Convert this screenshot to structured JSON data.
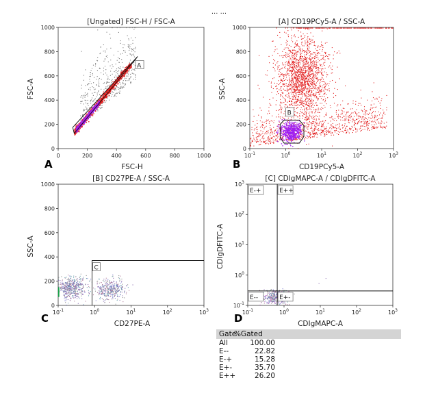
{
  "figure_caption_partial": "... ...",
  "chart_data": [
    {
      "panel_letter": "A",
      "type": "scatter",
      "title": "[Ungated] FSC-H / FSC-A",
      "xlabel": "FSC-H",
      "ylabel": "FSC-A",
      "xscale": "linear",
      "yscale": "linear",
      "xlim": [
        0,
        1000
      ],
      "ylim": [
        0,
        1000
      ],
      "xticks": [
        "0",
        "200",
        "400",
        "600",
        "800",
        "1000"
      ],
      "yticks": [
        "0",
        "200",
        "400",
        "600",
        "800",
        "1000"
      ],
      "populations": [
        {
          "name": "singlets-diagonal",
          "color": "#e21b1b",
          "cx": 330,
          "cy": 320,
          "note": "diagonal band y≈x"
        },
        {
          "name": "scattered-events",
          "color": "#777777",
          "cx": 380,
          "cy": 480
        },
        {
          "name": "dense-core",
          "color": "#a020f0",
          "cx": 220,
          "cy": 220
        }
      ],
      "gates": [
        {
          "label": "A",
          "shape": "parallelogram",
          "points": [
            [
              100,
              175
            ],
            [
              110,
              125
            ],
            [
              530,
              735
            ],
            [
              545,
              760
            ]
          ]
        }
      ]
    },
    {
      "panel_letter": "B",
      "type": "scatter",
      "title": "[A] CD19PCy5-A / SSC-A",
      "xlabel": "CD19PCy5-A",
      "ylabel": "SSC-A",
      "xscale": "log",
      "yscale": "linear",
      "xlim": [
        0.1,
        1000
      ],
      "ylim": [
        0,
        1000
      ],
      "xticks": [
        "10^-1",
        "10^0",
        "10^1",
        "10^2",
        "10^3"
      ],
      "yticks": [
        "0",
        "200",
        "400",
        "600",
        "800",
        "1000"
      ],
      "populations": [
        {
          "name": "high-ssc-cloud",
          "color": "#e21b1b",
          "cx": 2.8,
          "cy": 600
        },
        {
          "name": "low-ssc-events",
          "color": "#e21b1b",
          "cx": 1.5,
          "cy": 150
        },
        {
          "name": "gated-B",
          "color": "#a020f0",
          "cx": 1.5,
          "cy": 150
        }
      ],
      "gates": [
        {
          "label": "B",
          "shape": "polygon",
          "points": [
            [
              0.7,
              90
            ],
            [
              0.7,
              200
            ],
            [
              0.9,
              235
            ],
            [
              2.4,
              235
            ],
            [
              3.2,
              190
            ],
            [
              3.2,
              100
            ],
            [
              2.4,
              45
            ],
            [
              0.9,
              45
            ]
          ]
        }
      ]
    },
    {
      "panel_letter": "C",
      "type": "scatter",
      "title": "[B] CD27PE-A / SSC-A",
      "xlabel": "CD27PE-A",
      "ylabel": "SSC-A",
      "xscale": "log",
      "yscale": "linear",
      "xlim": [
        0.1,
        1000
      ],
      "ylim": [
        0,
        1000
      ],
      "xticks": [
        "10^-1",
        "10^0",
        "10^1",
        "10^2",
        "10^3"
      ],
      "yticks": [
        "0",
        "200",
        "400",
        "600",
        "800",
        "1000"
      ],
      "populations": [
        {
          "name": "cd27-neg",
          "color": "#8a6bb0",
          "cx": 0.28,
          "cy": 150
        },
        {
          "name": "cd27-pos",
          "color": "#8a6bb0",
          "cx": 3.0,
          "cy": 130
        }
      ],
      "gates": [
        {
          "label": "C",
          "shape": "rectangle",
          "x0": 0.85,
          "x1": 1000,
          "y0": 0,
          "y1": 370
        }
      ]
    },
    {
      "panel_letter": "D",
      "type": "scatter",
      "title": "[C] CDIgMAPC-A / CDIgDFITC-A",
      "xlabel": "CDIgMAPC-A",
      "ylabel": "CDIgDFITC-A",
      "xscale": "log",
      "yscale": "log",
      "xlim": [
        0.1,
        1000
      ],
      "ylim": [
        0.1,
        1000
      ],
      "xticks": [
        "10^-1",
        "10^0",
        "10^1",
        "10^2",
        "10^3"
      ],
      "yticks": [
        "10^-1",
        "10^0",
        "10^1",
        "10^2",
        "10^3"
      ],
      "populations": [
        {
          "name": "quadrant-events",
          "color": "#8a6bb0",
          "cx": 0.7,
          "cy": 0.22
        }
      ],
      "quadrant_split": {
        "x": 0.65,
        "y": 0.3
      },
      "quadrant_labels": [
        "E-+",
        "E++",
        "E--",
        "E+-"
      ]
    }
  ],
  "stats_table": {
    "headers": [
      "Gate",
      "%Gated"
    ],
    "rows": [
      {
        "gate": "All",
        "pct": "100.00"
      },
      {
        "gate": "E--",
        "pct": "22.82"
      },
      {
        "gate": "E-+",
        "pct": "15.28"
      },
      {
        "gate": "E+-",
        "pct": "35.70"
      },
      {
        "gate": "E++",
        "pct": "26.20"
      }
    ]
  }
}
